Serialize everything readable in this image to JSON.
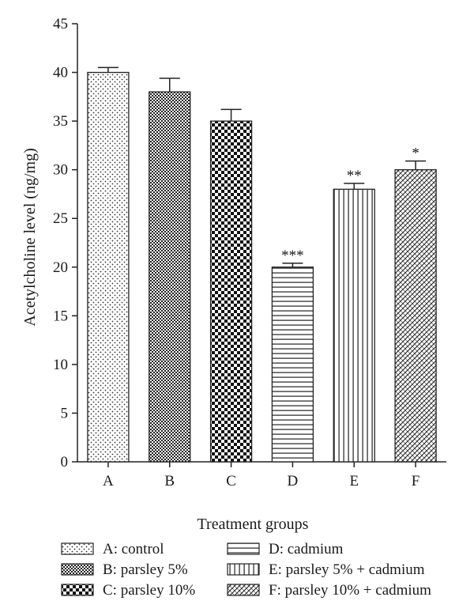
{
  "chart_data": {
    "type": "bar",
    "title": "",
    "xlabel": "Treatment groups",
    "ylabel": "Acetylcholine level (ng/mg)",
    "ylim": [
      0,
      45
    ],
    "yticks": [
      0,
      5,
      10,
      15,
      20,
      25,
      30,
      35,
      40,
      45
    ],
    "grid": false,
    "legend_position": "bottom",
    "categories": [
      "A",
      "B",
      "C",
      "D",
      "E",
      "F"
    ],
    "values": [
      40,
      38,
      35,
      20,
      28,
      30
    ],
    "error": [
      0.5,
      1.4,
      1.2,
      0.4,
      0.6,
      0.9
    ],
    "significance": [
      "",
      "",
      "",
      "***",
      "**",
      "*"
    ],
    "patterns": [
      "dots",
      "fine-check",
      "check",
      "horizontal-lines",
      "vertical-lines",
      "diagonal-cross"
    ],
    "legend": [
      "A: control",
      "B: parsley 5%",
      "C: parsley 10%",
      "D: cadmium",
      "E: parsley 5% + cadmium",
      "F: parsley 10% + cadmium"
    ]
  }
}
